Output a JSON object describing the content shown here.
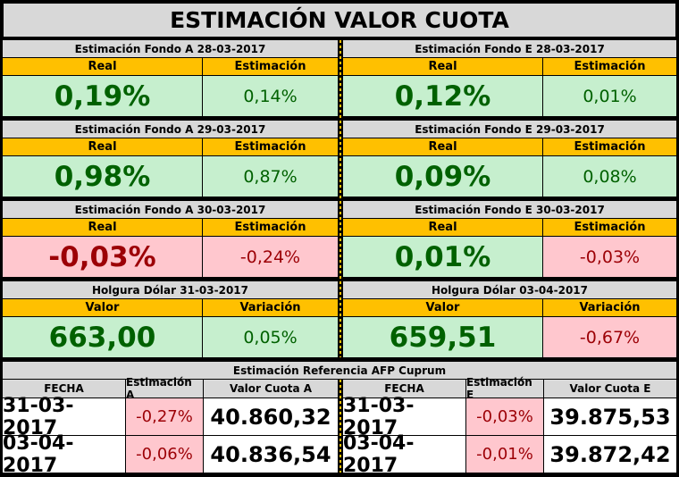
{
  "title": "ESTIMACIÓN VALOR CUOTA",
  "sections": [
    {
      "left": {
        "header": "Estimación Fondo A  28-03-2017",
        "col1": "Real",
        "col2": "Estimación",
        "v1": "0,19%",
        "v2": "0,14%"
      },
      "right": {
        "header": "Estimación Fondo E  28-03-2017",
        "col1": "Real",
        "col2": "Estimación",
        "v1": "0,12%",
        "v2": "0,01%"
      }
    },
    {
      "left": {
        "header": "Estimación Fondo A  29-03-2017",
        "col1": "Real",
        "col2": "Estimación",
        "v1": "0,98%",
        "v2": "0,87%"
      },
      "right": {
        "header": "Estimación Fondo E  29-03-2017",
        "col1": "Real",
        "col2": "Estimación",
        "v1": "0,09%",
        "v2": "0,08%"
      }
    },
    {
      "left": {
        "header": "Estimación Fondo A  30-03-2017",
        "col1": "Real",
        "col2": "Estimación",
        "v1": "-0,03%",
        "v2": "-0,24%"
      },
      "right": {
        "header": "Estimación Fondo E  30-03-2017",
        "col1": "Real",
        "col2": "Estimación",
        "v1": "0,01%",
        "v2": "-0,03%"
      }
    },
    {
      "left": {
        "header": "Holgura Dólar  31-03-2017",
        "col1": "Valor",
        "col2": "Variación",
        "v1": "663,00",
        "v2": "0,05%"
      },
      "right": {
        "header": "Holgura Dólar  03-04-2017",
        "col1": "Valor",
        "col2": "Variación",
        "v1": "659,51",
        "v2": "-0,67%"
      }
    }
  ],
  "reference": {
    "header": "Estimación Referencia AFP Cuprum",
    "columns": [
      "FECHA",
      "Estimación A",
      "Valor Cuota A",
      "FECHA",
      "Estimación E",
      "Valor Cuota E"
    ],
    "rows": [
      [
        "31-03-2017",
        "-0,27%",
        "40.860,32",
        "31-03-2017",
        "-0,03%",
        "39.875,53"
      ],
      [
        "03-04-2017",
        "-0,06%",
        "40.836,54",
        "03-04-2017",
        "-0,01%",
        "39.872,42"
      ]
    ]
  },
  "colors": {
    "header_gray": "#d8d8d8",
    "orange": "#ffc000",
    "positive_bg": "#c6efce",
    "positive_text": "#006100",
    "negative_bg": "#ffc7ce",
    "negative_text": "#9c0006"
  }
}
